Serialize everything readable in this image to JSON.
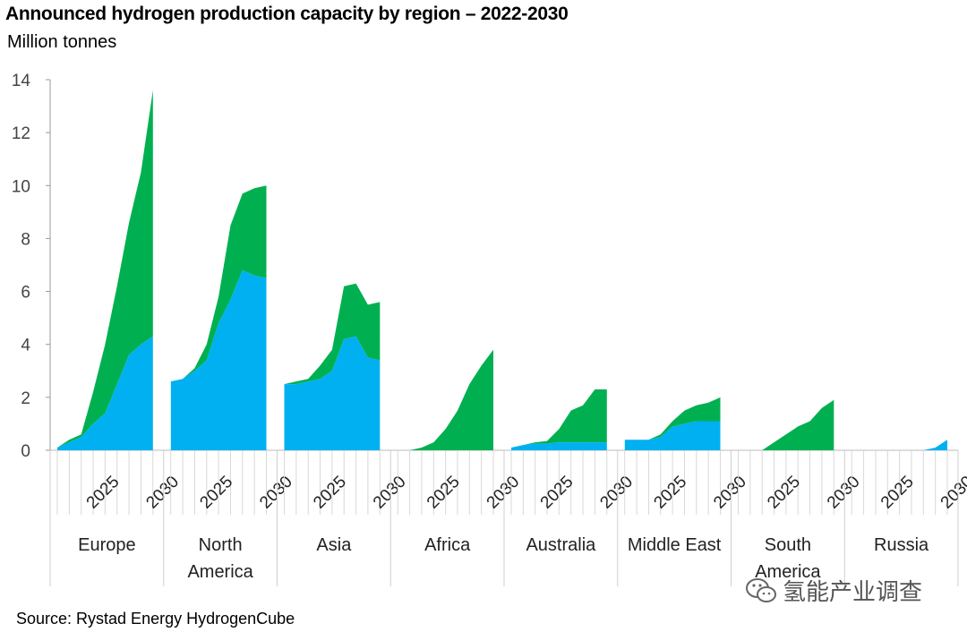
{
  "chart_data": {
    "type": "area",
    "title": "Announced hydrogen production capacity by region –  2022-2030",
    "subtitle": "Million tonnes",
    "ylabel": "Million tonnes",
    "ylim": [
      0,
      14
    ],
    "yticks": [
      0,
      2,
      4,
      6,
      8,
      10,
      12,
      14
    ],
    "years": [
      2022,
      2023,
      2024,
      2025,
      2026,
      2027,
      2028,
      2029,
      2030
    ],
    "year_tick_labels": [
      "2025",
      "2030"
    ],
    "series_colors": {
      "blue": "#00b0f0",
      "green": "#00b050"
    },
    "regions": [
      {
        "name": "Europe",
        "blue": [
          0.1,
          0.3,
          0.5,
          1.0,
          1.4,
          2.5,
          3.6,
          4.0,
          4.3
        ],
        "total": [
          0.1,
          0.4,
          0.6,
          2.2,
          4.0,
          6.2,
          8.6,
          10.5,
          13.6
        ]
      },
      {
        "name": "North America",
        "blue": [
          2.6,
          2.7,
          3.0,
          3.4,
          4.8,
          5.7,
          6.8,
          6.6,
          6.5
        ],
        "total": [
          2.6,
          2.7,
          3.1,
          4.0,
          5.8,
          8.5,
          9.7,
          9.9,
          10.0
        ]
      },
      {
        "name": "Asia",
        "blue": [
          2.5,
          2.5,
          2.6,
          2.7,
          3.0,
          4.2,
          4.3,
          3.5,
          3.4
        ],
        "total": [
          2.5,
          2.6,
          2.7,
          3.2,
          3.8,
          6.2,
          6.3,
          5.5,
          5.6
        ]
      },
      {
        "name": "Africa",
        "blue": [
          0,
          0,
          0,
          0,
          0,
          0,
          0,
          0,
          0
        ],
        "total": [
          0,
          0,
          0.1,
          0.3,
          0.8,
          1.5,
          2.5,
          3.2,
          3.8
        ]
      },
      {
        "name": "Australia",
        "blue": [
          0.1,
          0.2,
          0.25,
          0.25,
          0.3,
          0.3,
          0.3,
          0.3,
          0.3
        ],
        "total": [
          0.1,
          0.2,
          0.3,
          0.35,
          0.8,
          1.5,
          1.7,
          2.3,
          2.3
        ]
      },
      {
        "name": "Middle East",
        "blue": [
          0.4,
          0.4,
          0.4,
          0.5,
          0.9,
          1.0,
          1.1,
          1.1,
          1.1
        ],
        "total": [
          0.4,
          0.4,
          0.4,
          0.6,
          1.1,
          1.5,
          1.7,
          1.8,
          2.0
        ]
      },
      {
        "name": "South America",
        "blue": [
          0,
          0,
          0,
          0,
          0,
          0,
          0,
          0,
          0
        ],
        "total": [
          0,
          0,
          0,
          0.3,
          0.6,
          0.9,
          1.1,
          1.6,
          1.9
        ]
      },
      {
        "name": "Russia",
        "blue": [
          0,
          0,
          0,
          0,
          0,
          0,
          0,
          0.1,
          0.4
        ],
        "total": [
          0,
          0,
          0,
          0,
          0,
          0,
          0,
          0.1,
          0.4
        ]
      }
    ],
    "source": "Source: Rystad Energy HydrogenCube"
  },
  "watermark": {
    "text": "氢能产业调查",
    "icon": "wechat-icon"
  }
}
